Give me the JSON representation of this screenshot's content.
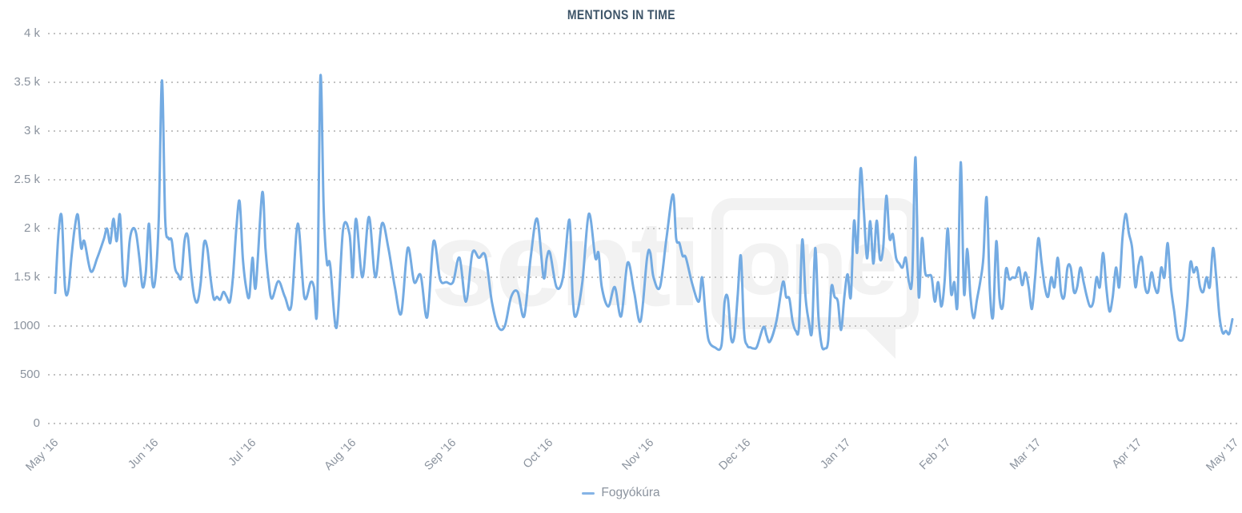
{
  "title": "MENTIONS IN TIME",
  "watermark": {
    "text_left": "senti",
    "text_boxed": "one"
  },
  "legend": {
    "items": [
      {
        "label": "Fogyókúra",
        "color": "#85b4e6"
      }
    ]
  },
  "colors": {
    "line": "#74abe2",
    "grid_dots": "#c2c2c2",
    "axis_labels": "#8b939e",
    "title_text": "#3d5468",
    "legend_text": "#8b939e",
    "watermark": "#f2f2f2",
    "background": "#ffffff"
  },
  "chart_data": {
    "type": "line",
    "title": "MENTIONS IN TIME",
    "grid": "horizontal-dotted",
    "legend_position": "bottom-center",
    "x_axis": {
      "tick_labels": [
        "May '16",
        "Jun '16",
        "Jul '16",
        "Aug '16",
        "Sep '16",
        "Oct '16",
        "Nov '16",
        "Dec '16",
        "Jan '17",
        "Feb '17",
        "Mar '17",
        "Apr '17",
        "May '17"
      ],
      "tick_days": [
        0,
        31,
        61,
        92,
        123,
        153,
        184,
        214,
        245,
        276,
        304,
        335,
        365
      ],
      "range_days": [
        0,
        365
      ]
    },
    "y_axis": {
      "tick_labels": [
        "0",
        "500",
        "1000",
        "1.5 k",
        "2 k",
        "2.5 k",
        "3 k",
        "3.5 k",
        "4 k"
      ],
      "tick_values": [
        0,
        500,
        1000,
        1500,
        2000,
        2500,
        3000,
        3500,
        4000
      ],
      "range": [
        0,
        4000
      ]
    },
    "series": [
      {
        "name": "Fogyókúra",
        "color": "#74abe2",
        "points": [
          [
            1,
            1340
          ],
          [
            2,
            1950
          ],
          [
            3,
            2120
          ],
          [
            4,
            1400
          ],
          [
            5,
            1360
          ],
          [
            6,
            1700
          ],
          [
            7,
            2000
          ],
          [
            8,
            2140
          ],
          [
            9,
            1800
          ],
          [
            10,
            1870
          ],
          [
            12,
            1560
          ],
          [
            14,
            1700
          ],
          [
            16,
            1890
          ],
          [
            17,
            2000
          ],
          [
            18,
            1850
          ],
          [
            19,
            2100
          ],
          [
            20,
            1870
          ],
          [
            21,
            2140
          ],
          [
            22,
            1500
          ],
          [
            23,
            1450
          ],
          [
            24,
            1870
          ],
          [
            25,
            2000
          ],
          [
            26,
            1950
          ],
          [
            27,
            1700
          ],
          [
            28,
            1400
          ],
          [
            29,
            1550
          ],
          [
            30,
            2050
          ],
          [
            31,
            1450
          ],
          [
            32,
            1500
          ],
          [
            33,
            2100
          ],
          [
            34,
            3520
          ],
          [
            35,
            2100
          ],
          [
            36,
            1900
          ],
          [
            37,
            1880
          ],
          [
            38,
            1600
          ],
          [
            39,
            1530
          ],
          [
            40,
            1500
          ],
          [
            41,
            1880
          ],
          [
            42,
            1920
          ],
          [
            43,
            1550
          ],
          [
            44,
            1300
          ],
          [
            45,
            1250
          ],
          [
            46,
            1450
          ],
          [
            47,
            1850
          ],
          [
            48,
            1800
          ],
          [
            49,
            1500
          ],
          [
            50,
            1280
          ],
          [
            51,
            1300
          ],
          [
            52,
            1270
          ],
          [
            53,
            1350
          ],
          [
            54,
            1300
          ],
          [
            55,
            1250
          ],
          [
            56,
            1520
          ],
          [
            57,
            2000
          ],
          [
            58,
            2280
          ],
          [
            59,
            1700
          ],
          [
            60,
            1400
          ],
          [
            61,
            1300
          ],
          [
            62,
            1700
          ],
          [
            63,
            1400
          ],
          [
            65,
            2370
          ],
          [
            66,
            1800
          ],
          [
            67,
            1450
          ],
          [
            68,
            1280
          ],
          [
            70,
            1460
          ],
          [
            72,
            1300
          ],
          [
            74,
            1210
          ],
          [
            76,
            2050
          ],
          [
            78,
            1300
          ],
          [
            80,
            1450
          ],
          [
            81,
            1400
          ],
          [
            82,
            1200
          ],
          [
            83,
            3560
          ],
          [
            84,
            2200
          ],
          [
            85,
            1650
          ],
          [
            86,
            1630
          ],
          [
            88,
            984
          ],
          [
            90,
            1990
          ],
          [
            92,
            1940
          ],
          [
            93,
            1500
          ],
          [
            94,
            2100
          ],
          [
            96,
            1500
          ],
          [
            98,
            2120
          ],
          [
            100,
            1500
          ],
          [
            102,
            2050
          ],
          [
            104,
            1800
          ],
          [
            106,
            1400
          ],
          [
            108,
            1130
          ],
          [
            110,
            1800
          ],
          [
            112,
            1450
          ],
          [
            114,
            1520
          ],
          [
            116,
            1090
          ],
          [
            118,
            1870
          ],
          [
            120,
            1480
          ],
          [
            122,
            1450
          ],
          [
            124,
            1450
          ],
          [
            126,
            1700
          ],
          [
            128,
            1250
          ],
          [
            130,
            1750
          ],
          [
            132,
            1700
          ],
          [
            134,
            1720
          ],
          [
            136,
            1250
          ],
          [
            138,
            990
          ],
          [
            140,
            1000
          ],
          [
            142,
            1300
          ],
          [
            144,
            1350
          ],
          [
            146,
            1100
          ],
          [
            148,
            1700
          ],
          [
            150,
            2100
          ],
          [
            152,
            1500
          ],
          [
            153,
            1700
          ],
          [
            154,
            1750
          ],
          [
            156,
            1400
          ],
          [
            158,
            1500
          ],
          [
            160,
            2090
          ],
          [
            161,
            1300
          ],
          [
            162,
            1100
          ],
          [
            164,
            1450
          ],
          [
            166,
            2150
          ],
          [
            168,
            1700
          ],
          [
            169,
            1750
          ],
          [
            170,
            1400
          ],
          [
            172,
            1200
          ],
          [
            174,
            1400
          ],
          [
            176,
            1100
          ],
          [
            178,
            1650
          ],
          [
            180,
            1350
          ],
          [
            182,
            1050
          ],
          [
            184,
            1700
          ],
          [
            185,
            1750
          ],
          [
            186,
            1500
          ],
          [
            188,
            1400
          ],
          [
            190,
            1900
          ],
          [
            192,
            2350
          ],
          [
            193,
            1900
          ],
          [
            194,
            1850
          ],
          [
            195,
            1720
          ],
          [
            196,
            1700
          ],
          [
            198,
            1430
          ],
          [
            200,
            1250
          ],
          [
            201,
            1500
          ],
          [
            202,
            1150
          ],
          [
            203,
            860
          ],
          [
            205,
            780
          ],
          [
            207,
            800
          ],
          [
            208,
            1250
          ],
          [
            209,
            1280
          ],
          [
            210,
            870
          ],
          [
            211,
            900
          ],
          [
            212,
            1300
          ],
          [
            213,
            1720
          ],
          [
            214,
            950
          ],
          [
            215,
            800
          ],
          [
            216,
            780
          ],
          [
            217,
            770
          ],
          [
            218,
            790
          ],
          [
            220,
            990
          ],
          [
            221,
            900
          ],
          [
            222,
            840
          ],
          [
            224,
            1050
          ],
          [
            226,
            1450
          ],
          [
            227,
            1300
          ],
          [
            228,
            1280
          ],
          [
            229,
            1050
          ],
          [
            230,
            950
          ],
          [
            231,
            1000
          ],
          [
            232,
            1885
          ],
          [
            233,
            1300
          ],
          [
            234,
            1050
          ],
          [
            235,
            950
          ],
          [
            236,
            1800
          ],
          [
            237,
            1100
          ],
          [
            238,
            800
          ],
          [
            239,
            770
          ],
          [
            240,
            850
          ],
          [
            241,
            1400
          ],
          [
            242,
            1300
          ],
          [
            243,
            1250
          ],
          [
            244,
            960
          ],
          [
            245,
            1300
          ],
          [
            246,
            1530
          ],
          [
            247,
            1300
          ],
          [
            248,
            2075
          ],
          [
            249,
            1760
          ],
          [
            250,
            2610
          ],
          [
            251,
            2200
          ],
          [
            252,
            1695
          ],
          [
            253,
            2075
          ],
          [
            254,
            1640
          ],
          [
            255,
            2080
          ],
          [
            256,
            1690
          ],
          [
            257,
            1800
          ],
          [
            258,
            2336
          ],
          [
            259,
            1900
          ],
          [
            260,
            1940
          ],
          [
            261,
            1700
          ],
          [
            262,
            1640
          ],
          [
            263,
            1600
          ],
          [
            264,
            1700
          ],
          [
            265,
            1450
          ],
          [
            266,
            1500
          ],
          [
            267,
            2730
          ],
          [
            268,
            1310
          ],
          [
            269,
            1900
          ],
          [
            270,
            1550
          ],
          [
            271,
            1520
          ],
          [
            272,
            1500
          ],
          [
            273,
            1250
          ],
          [
            274,
            1450
          ],
          [
            275,
            1200
          ],
          [
            276,
            1450
          ],
          [
            277,
            2000
          ],
          [
            278,
            1340
          ],
          [
            279,
            1450
          ],
          [
            280,
            1230
          ],
          [
            281,
            2680
          ],
          [
            282,
            1340
          ],
          [
            283,
            1790
          ],
          [
            284,
            1300
          ],
          [
            285,
            1080
          ],
          [
            286,
            1270
          ],
          [
            287,
            1450
          ],
          [
            288,
            1700
          ],
          [
            289,
            2320
          ],
          [
            290,
            1370
          ],
          [
            291,
            1100
          ],
          [
            292,
            1870
          ],
          [
            293,
            1285
          ],
          [
            294,
            1200
          ],
          [
            295,
            1585
          ],
          [
            296,
            1480
          ],
          [
            297,
            1500
          ],
          [
            298,
            1500
          ],
          [
            299,
            1600
          ],
          [
            300,
            1420
          ],
          [
            301,
            1550
          ],
          [
            302,
            1400
          ],
          [
            303,
            1175
          ],
          [
            304,
            1500
          ],
          [
            305,
            1900
          ],
          [
            306,
            1650
          ],
          [
            307,
            1400
          ],
          [
            308,
            1300
          ],
          [
            309,
            1500
          ],
          [
            310,
            1400
          ],
          [
            311,
            1700
          ],
          [
            312,
            1350
          ],
          [
            313,
            1300
          ],
          [
            314,
            1600
          ],
          [
            315,
            1600
          ],
          [
            316,
            1350
          ],
          [
            317,
            1400
          ],
          [
            318,
            1600
          ],
          [
            319,
            1450
          ],
          [
            320,
            1300
          ],
          [
            321,
            1200
          ],
          [
            322,
            1250
          ],
          [
            323,
            1500
          ],
          [
            324,
            1400
          ],
          [
            325,
            1750
          ],
          [
            326,
            1400
          ],
          [
            327,
            1150
          ],
          [
            328,
            1300
          ],
          [
            329,
            1600
          ],
          [
            330,
            1400
          ],
          [
            331,
            1900
          ],
          [
            332,
            2150
          ],
          [
            333,
            1950
          ],
          [
            334,
            1800
          ],
          [
            335,
            1400
          ],
          [
            336,
            1625
          ],
          [
            337,
            1700
          ],
          [
            338,
            1400
          ],
          [
            339,
            1350
          ],
          [
            340,
            1550
          ],
          [
            341,
            1400
          ],
          [
            342,
            1350
          ],
          [
            343,
            1600
          ],
          [
            344,
            1500
          ],
          [
            345,
            1850
          ],
          [
            346,
            1400
          ],
          [
            347,
            1150
          ],
          [
            348,
            900
          ],
          [
            349,
            850
          ],
          [
            350,
            900
          ],
          [
            351,
            1200
          ],
          [
            352,
            1650
          ],
          [
            353,
            1550
          ],
          [
            354,
            1600
          ],
          [
            355,
            1400
          ],
          [
            356,
            1350
          ],
          [
            357,
            1500
          ],
          [
            358,
            1400
          ],
          [
            359,
            1800
          ],
          [
            360,
            1500
          ],
          [
            361,
            1100
          ],
          [
            362,
            930
          ],
          [
            363,
            950
          ],
          [
            364,
            920
          ],
          [
            365,
            1070
          ]
        ]
      }
    ]
  }
}
